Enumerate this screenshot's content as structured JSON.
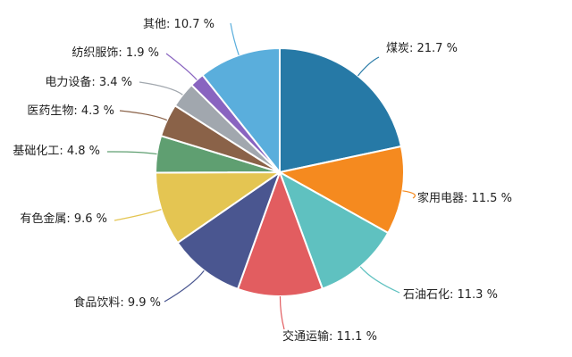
{
  "chart_data": {
    "type": "pie",
    "title": "",
    "value_suffix": " %",
    "start_angle_deg": 0,
    "direction": "clockwise",
    "slices": [
      {
        "label": "煤炭",
        "value": 21.7,
        "color": "#2679a6"
      },
      {
        "label": "家用电器",
        "value": 11.5,
        "color": "#f58a1f"
      },
      {
        "label": "石油石化",
        "value": 11.3,
        "color": "#5fc1c0"
      },
      {
        "label": "交通运输",
        "value": 11.1,
        "color": "#e25d60"
      },
      {
        "label": "食品饮料",
        "value": 9.9,
        "color": "#4a5690"
      },
      {
        "label": "有色金属",
        "value": 9.6,
        "color": "#e4c552"
      },
      {
        "label": "基础化工",
        "value": 4.8,
        "color": "#5f9f71"
      },
      {
        "label": "医药生物",
        "value": 4.3,
        "color": "#8a6248"
      },
      {
        "label": "电力设备",
        "value": 3.4,
        "color": "#a1a7ae"
      },
      {
        "label": "纺织服饰",
        "value": 1.9,
        "color": "#8964c0"
      },
      {
        "label": "其他",
        "value": 10.7,
        "color": "#5aaedc"
      }
    ]
  }
}
